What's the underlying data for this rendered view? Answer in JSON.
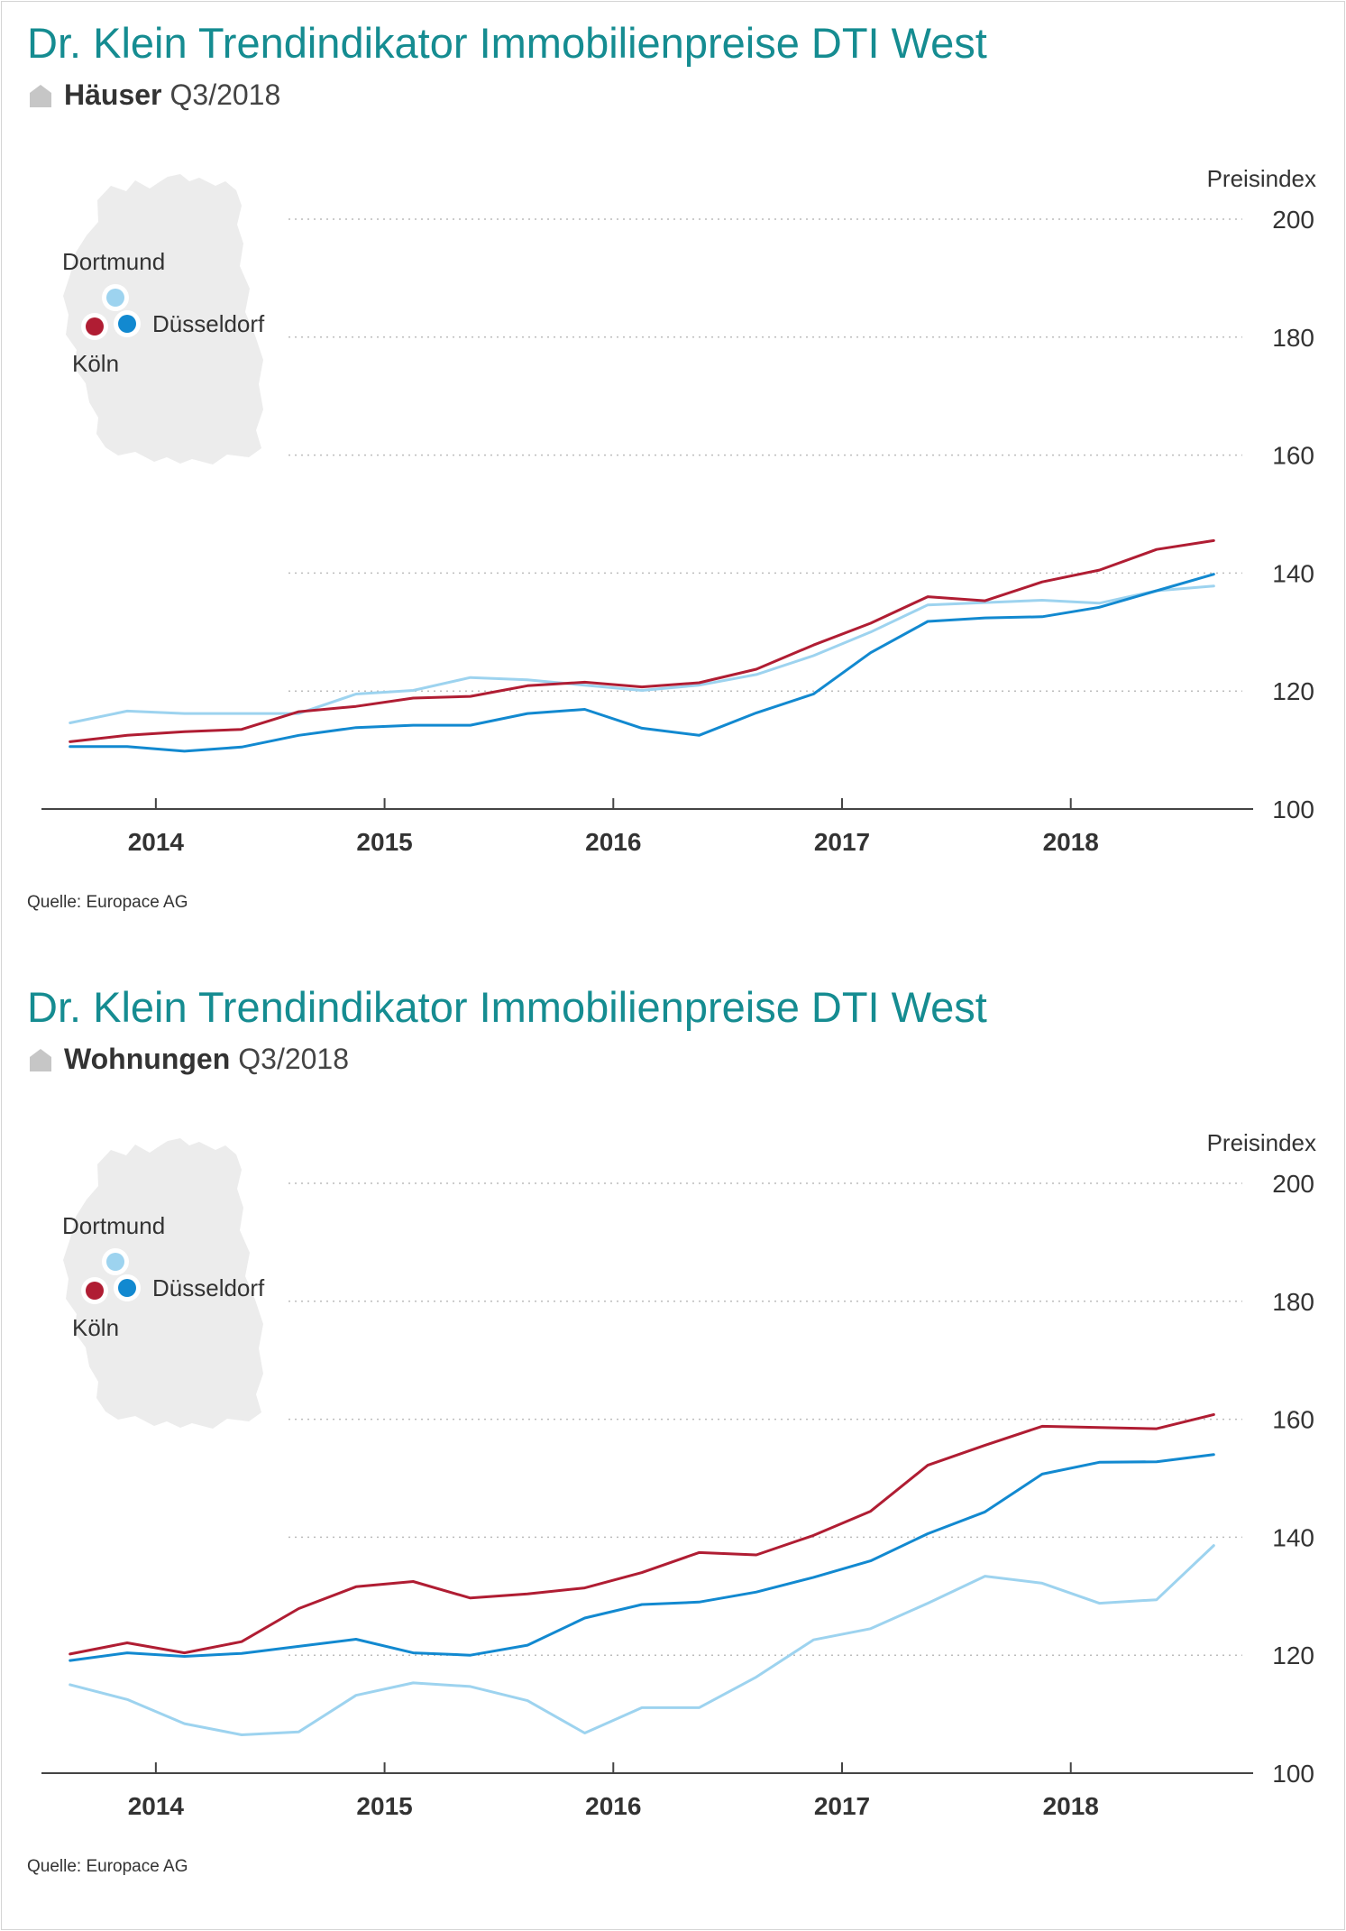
{
  "colors": {
    "title": "#158c91",
    "koeln": "#b01d33",
    "duesseldorf": "#1289d0",
    "dortmund": "#9dd3ef",
    "map": "#ececec",
    "grid": "#bcbcbc",
    "axis": "#444444"
  },
  "icons": {
    "subtitle": "house-icon",
    "map": "germany-map-icon"
  },
  "chart_data": [
    {
      "type": "line",
      "title": "Dr. Klein Trendindikator Immobilienpreise DTI West",
      "subtitle_strong": "Häuser",
      "subtitle_period": "Q3/2018",
      "ylabel": "Preisindex",
      "ylim": [
        100,
        200
      ],
      "yticks": [
        "100",
        "120",
        "140",
        "160",
        "180",
        "200"
      ],
      "xlim": [
        2013.5,
        2018.75
      ],
      "xticks": [
        "2014",
        "2015",
        "2016",
        "2017",
        "2018"
      ],
      "grid": true,
      "source": "Quelle: Europace AG",
      "map_labels": {
        "dortmund": "Dortmund",
        "duesseldorf": "Düsseldorf",
        "koeln": "Köln"
      },
      "x": [
        2013.625,
        2013.875,
        2014.125,
        2014.375,
        2014.625,
        2014.875,
        2015.125,
        2015.375,
        2015.625,
        2015.875,
        2016.125,
        2016.375,
        2016.625,
        2016.875,
        2017.125,
        2017.375,
        2017.625,
        2017.875,
        2018.125,
        2018.375,
        2018.625
      ],
      "series": [
        {
          "key": "dortmund",
          "values": [
            114.6,
            116.6,
            116.2,
            116.2,
            116.2,
            119.5,
            120.1,
            122.3,
            121.9,
            121.0,
            120.1,
            121.0,
            122.8,
            126.0,
            130.0,
            134.6,
            135.0,
            135.4,
            134.9,
            137.0,
            137.8
          ]
        },
        {
          "key": "koeln",
          "values": [
            111.4,
            112.5,
            113.1,
            113.5,
            116.5,
            117.4,
            118.8,
            119.1,
            120.9,
            121.5,
            120.7,
            121.4,
            123.7,
            127.8,
            131.5,
            136.0,
            135.3,
            138.5,
            140.5,
            144.0,
            145.5
          ]
        },
        {
          "key": "duesseldorf",
          "values": [
            110.6,
            110.6,
            109.8,
            110.5,
            112.5,
            113.8,
            114.2,
            114.2,
            116.2,
            116.9,
            113.7,
            112.5,
            116.3,
            119.5,
            126.5,
            131.8,
            132.4,
            132.6,
            134.2,
            137.0,
            139.8
          ]
        }
      ]
    },
    {
      "type": "line",
      "title": "Dr. Klein Trendindikator Immobilienpreise DTI West",
      "subtitle_strong": "Wohnungen",
      "subtitle_period": "Q3/2018",
      "ylabel": "Preisindex",
      "ylim": [
        100,
        200
      ],
      "yticks": [
        "100",
        "120",
        "140",
        "160",
        "180",
        "200"
      ],
      "xlim": [
        2013.5,
        2018.75
      ],
      "xticks": [
        "2014",
        "2015",
        "2016",
        "2017",
        "2018"
      ],
      "grid": true,
      "source": "Quelle: Europace AG",
      "map_labels": {
        "dortmund": "Dortmund",
        "duesseldorf": "Düsseldorf",
        "koeln": "Köln"
      },
      "x": [
        2013.625,
        2013.875,
        2014.125,
        2014.375,
        2014.625,
        2014.875,
        2015.125,
        2015.375,
        2015.625,
        2015.875,
        2016.125,
        2016.375,
        2016.625,
        2016.875,
        2017.125,
        2017.375,
        2017.625,
        2017.875,
        2018.125,
        2018.375,
        2018.625
      ],
      "series": [
        {
          "key": "dortmund",
          "values": [
            115.0,
            112.5,
            108.4,
            106.5,
            107.0,
            113.2,
            115.3,
            114.7,
            112.3,
            106.8,
            111.1,
            111.1,
            116.3,
            122.6,
            124.5,
            128.8,
            133.4,
            132.2,
            128.8,
            129.4,
            138.6
          ]
        },
        {
          "key": "koeln",
          "values": [
            120.2,
            122.1,
            120.4,
            122.3,
            127.9,
            131.6,
            132.5,
            129.7,
            130.4,
            131.4,
            134.0,
            137.4,
            137.0,
            140.3,
            144.4,
            152.2,
            155.6,
            158.8,
            158.6,
            158.4,
            160.8
          ]
        },
        {
          "key": "duesseldorf",
          "values": [
            119.1,
            120.4,
            119.8,
            120.3,
            121.5,
            122.7,
            120.4,
            120.0,
            121.7,
            126.3,
            128.6,
            129.0,
            130.7,
            133.2,
            136.0,
            140.6,
            144.3,
            150.7,
            152.7,
            152.8,
            154.0
          ]
        }
      ]
    }
  ]
}
